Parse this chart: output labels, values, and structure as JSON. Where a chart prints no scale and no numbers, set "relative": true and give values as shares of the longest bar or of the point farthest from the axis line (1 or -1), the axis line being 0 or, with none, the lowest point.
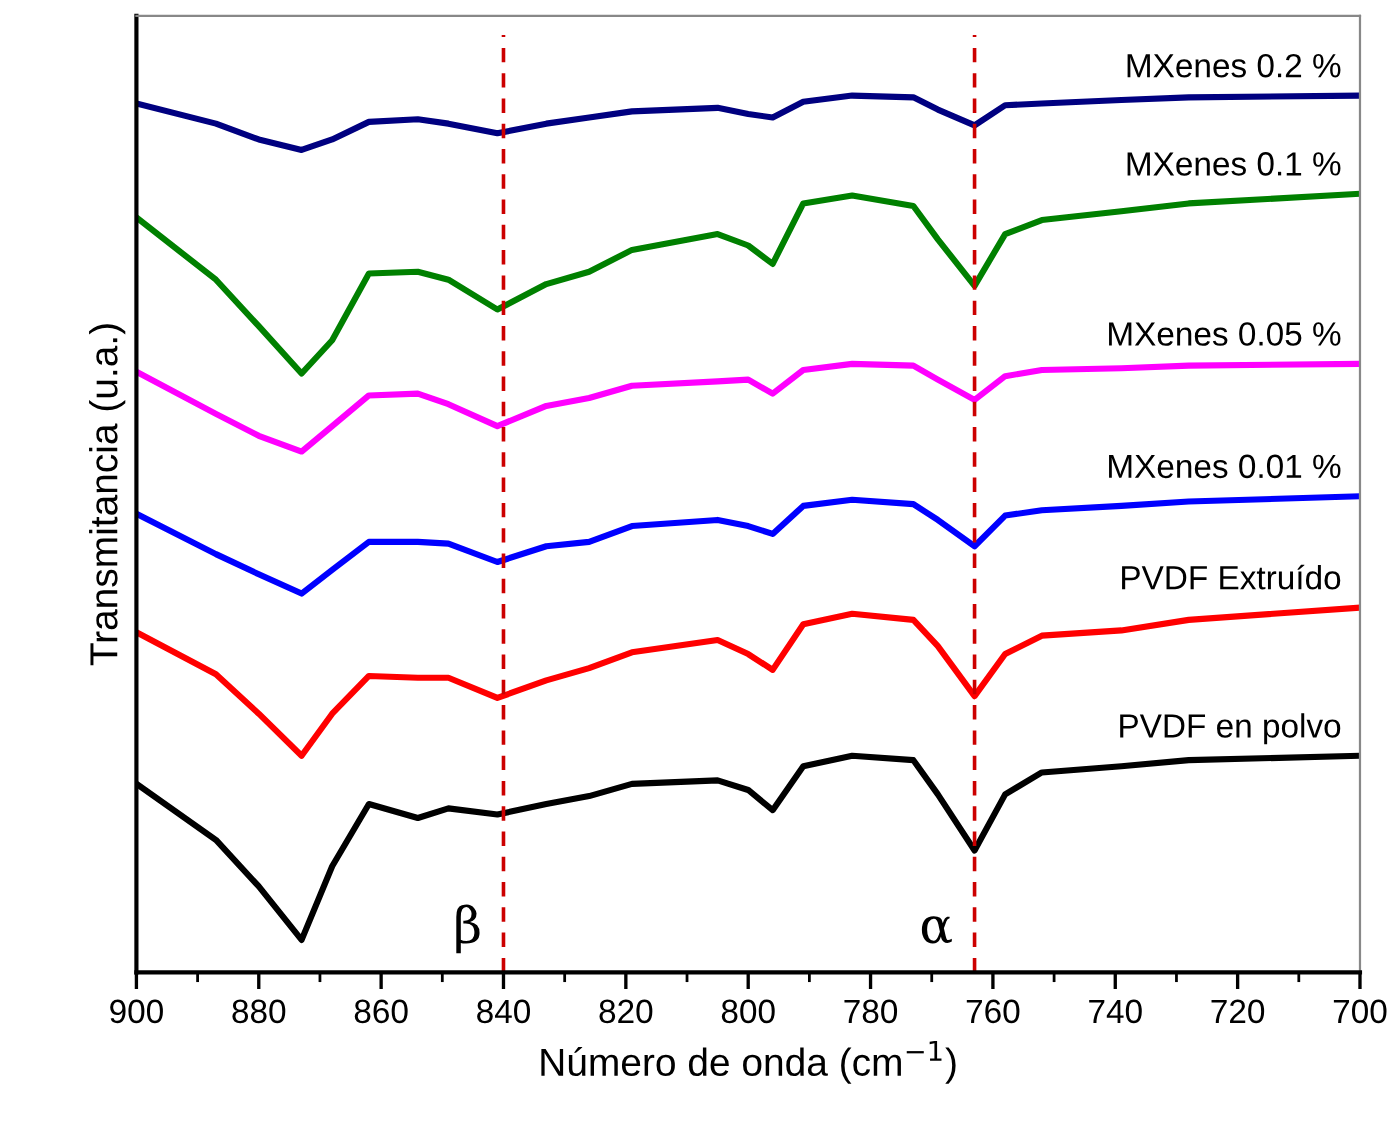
{
  "chart_data": {
    "type": "line",
    "relative": true,
    "xlabel": "Número de onda (cm$^{−1}$)",
    "ylabel": "Transmitancia (u.a.)",
    "x": [
      900,
      887,
      880,
      873,
      868,
      862,
      854,
      849,
      841,
      833,
      826,
      819,
      805,
      800,
      796,
      791,
      783,
      773,
      769,
      763,
      758,
      752,
      739,
      728,
      700
    ],
    "xlim": [
      900,
      700
    ],
    "xticks": [
      900,
      880,
      860,
      840,
      820,
      800,
      780,
      760,
      740,
      720,
      700
    ],
    "grid": false,
    "series": [
      {
        "name": "PVDF en polvo",
        "color": "#000000",
        "values": [
          0.215,
          0.151,
          0.098,
          0.037,
          0.121,
          0.192,
          0.176,
          0.187,
          0.18,
          0.192,
          0.201,
          0.215,
          0.219,
          0.208,
          0.185,
          0.235,
          0.247,
          0.242,
          0.203,
          0.139,
          0.203,
          0.228,
          0.235,
          0.242,
          0.247
        ]
      },
      {
        "name": "PVDF Extruído",
        "color": "#ff0000",
        "values": [
          0.388,
          0.34,
          0.295,
          0.247,
          0.295,
          0.338,
          0.336,
          0.336,
          0.313,
          0.333,
          0.347,
          0.365,
          0.379,
          0.363,
          0.345,
          0.397,
          0.409,
          0.402,
          0.372,
          0.315,
          0.363,
          0.384,
          0.39,
          0.402,
          0.416
        ]
      },
      {
        "name": "MXenes 0.01 %",
        "color": "#0000ff",
        "values": [
          0.523,
          0.477,
          0.454,
          0.432,
          0.459,
          0.491,
          0.491,
          0.489,
          0.468,
          0.486,
          0.491,
          0.509,
          0.516,
          0.509,
          0.5,
          0.532,
          0.539,
          0.534,
          0.516,
          0.486,
          0.521,
          0.527,
          0.532,
          0.537,
          0.543
        ]
      },
      {
        "name": "MXenes 0.05 %",
        "color": "#ff00ff",
        "values": [
          0.685,
          0.637,
          0.612,
          0.594,
          0.623,
          0.658,
          0.66,
          0.648,
          0.623,
          0.646,
          0.655,
          0.669,
          0.674,
          0.676,
          0.66,
          0.687,
          0.694,
          0.692,
          0.676,
          0.653,
          0.68,
          0.687,
          0.689,
          0.692,
          0.694
        ]
      },
      {
        "name": "MXenes 0.1 %",
        "color": "#008000",
        "values": [
          0.861,
          0.79,
          0.737,
          0.683,
          0.721,
          0.797,
          0.799,
          0.79,
          0.756,
          0.785,
          0.799,
          0.824,
          0.842,
          0.829,
          0.808,
          0.877,
          0.886,
          0.874,
          0.836,
          0.783,
          0.842,
          0.858,
          0.868,
          0.877,
          0.888
        ]
      },
      {
        "name": "MXenes 0.2 %",
        "color": "#000080",
        "values": [
          0.991,
          0.968,
          0.95,
          0.938,
          0.95,
          0.97,
          0.973,
          0.968,
          0.957,
          0.968,
          0.975,
          0.982,
          0.986,
          0.979,
          0.975,
          0.993,
          1,
          0.998,
          0.984,
          0.966,
          0.989,
          0.991,
          0.995,
          0.998,
          1
        ]
      }
    ],
    "ref_lines": [
      {
        "axis": "x",
        "value": 840,
        "label": "β",
        "color": "#cc0000",
        "line_style": "dashed"
      },
      {
        "axis": "x",
        "value": 763,
        "label": "α",
        "color": "#cc0000",
        "line_style": "dashed"
      }
    ]
  }
}
